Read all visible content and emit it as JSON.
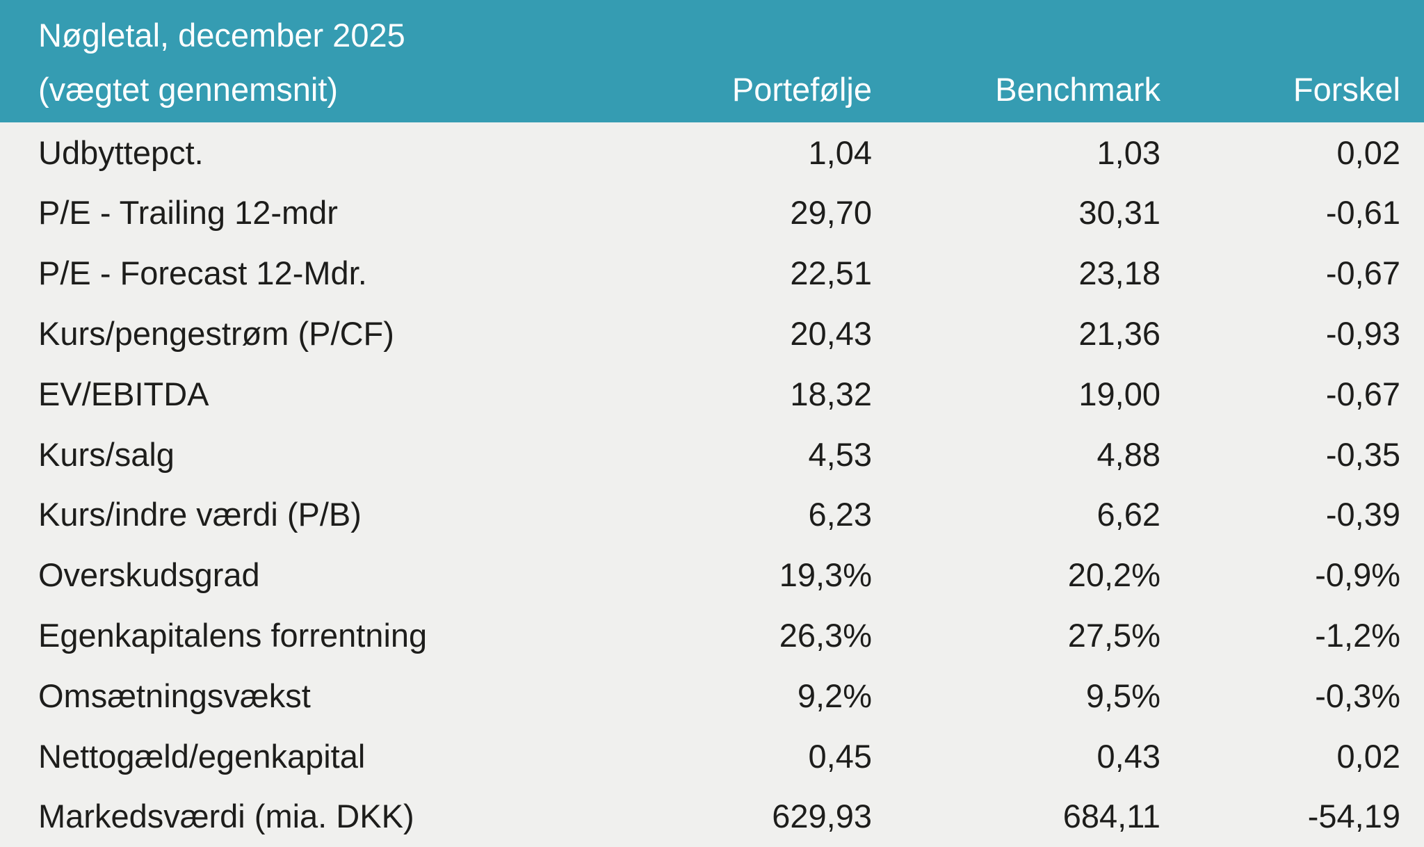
{
  "colors": {
    "accent": "#359cb2",
    "header_text": "#ffffff",
    "page_bg": "#f0f0ee",
    "body_text": "#1d1d1b"
  },
  "table": {
    "title_line1": "Nøgletal, december 2025",
    "title_line2": "(vægtet gennemsnit)",
    "columns": [
      "Portefølje",
      "Benchmark",
      "Forskel"
    ],
    "rows": [
      {
        "label": "Udbyttepct.",
        "portfolio": "1,04",
        "benchmark": "1,03",
        "difference": "0,02"
      },
      {
        "label": "P/E - Trailing 12-mdr",
        "portfolio": "29,70",
        "benchmark": "30,31",
        "difference": "-0,61"
      },
      {
        "label": "P/E - Forecast 12-Mdr.",
        "portfolio": "22,51",
        "benchmark": "23,18",
        "difference": "-0,67"
      },
      {
        "label": "Kurs/pengestrøm (P/CF)",
        "portfolio": "20,43",
        "benchmark": "21,36",
        "difference": "-0,93"
      },
      {
        "label": "EV/EBITDA",
        "portfolio": "18,32",
        "benchmark": "19,00",
        "difference": "-0,67"
      },
      {
        "label": "Kurs/salg",
        "portfolio": "4,53",
        "benchmark": "4,88",
        "difference": "-0,35"
      },
      {
        "label": "Kurs/indre værdi (P/B)",
        "portfolio": "6,23",
        "benchmark": "6,62",
        "difference": "-0,39"
      },
      {
        "label": "Overskudsgrad",
        "portfolio": "19,3%",
        "benchmark": "20,2%",
        "difference": "-0,9%"
      },
      {
        "label": "Egenkapitalens forrentning",
        "portfolio": "26,3%",
        "benchmark": "27,5%",
        "difference": "-1,2%"
      },
      {
        "label": "Omsætningsvækst",
        "portfolio": "9,2%",
        "benchmark": "9,5%",
        "difference": "-0,3%"
      },
      {
        "label": "Nettogæld/egenkapital",
        "portfolio": "0,45",
        "benchmark": "0,43",
        "difference": "0,02"
      },
      {
        "label": "Markedsværdi (mia. DKK)",
        "portfolio": "629,93",
        "benchmark": "684,11",
        "difference": "-54,19"
      }
    ]
  },
  "chart_data": {
    "type": "table",
    "title": "Nøgletal, december 2025 (vægtet gennemsnit)",
    "columns": [
      "",
      "Portefølje",
      "Benchmark",
      "Forskel"
    ],
    "rows": [
      [
        "Udbyttepct.",
        "1,04",
        "1,03",
        "0,02"
      ],
      [
        "P/E - Trailing 12-mdr",
        "29,70",
        "30,31",
        "-0,61"
      ],
      [
        "P/E - Forecast 12-Mdr.",
        "22,51",
        "23,18",
        "-0,67"
      ],
      [
        "Kurs/pengestrøm (P/CF)",
        "20,43",
        "21,36",
        "-0,93"
      ],
      [
        "EV/EBITDA",
        "18,32",
        "19,00",
        "-0,67"
      ],
      [
        "Kurs/salg",
        "4,53",
        "4,88",
        "-0,35"
      ],
      [
        "Kurs/indre værdi (P/B)",
        "6,23",
        "6,62",
        "-0,39"
      ],
      [
        "Overskudsgrad",
        "19,3%",
        "20,2%",
        "-0,9%"
      ],
      [
        "Egenkapitalens forrentning",
        "26,3%",
        "27,5%",
        "-1,2%"
      ],
      [
        "Omsætningsvækst",
        "9,2%",
        "9,5%",
        "-0,3%"
      ],
      [
        "Nettogæld/egenkapital",
        "0,45",
        "0,43",
        "0,02"
      ],
      [
        "Markedsværdi (mia. DKK)",
        "629,93",
        "684,11",
        "-54,19"
      ]
    ]
  }
}
